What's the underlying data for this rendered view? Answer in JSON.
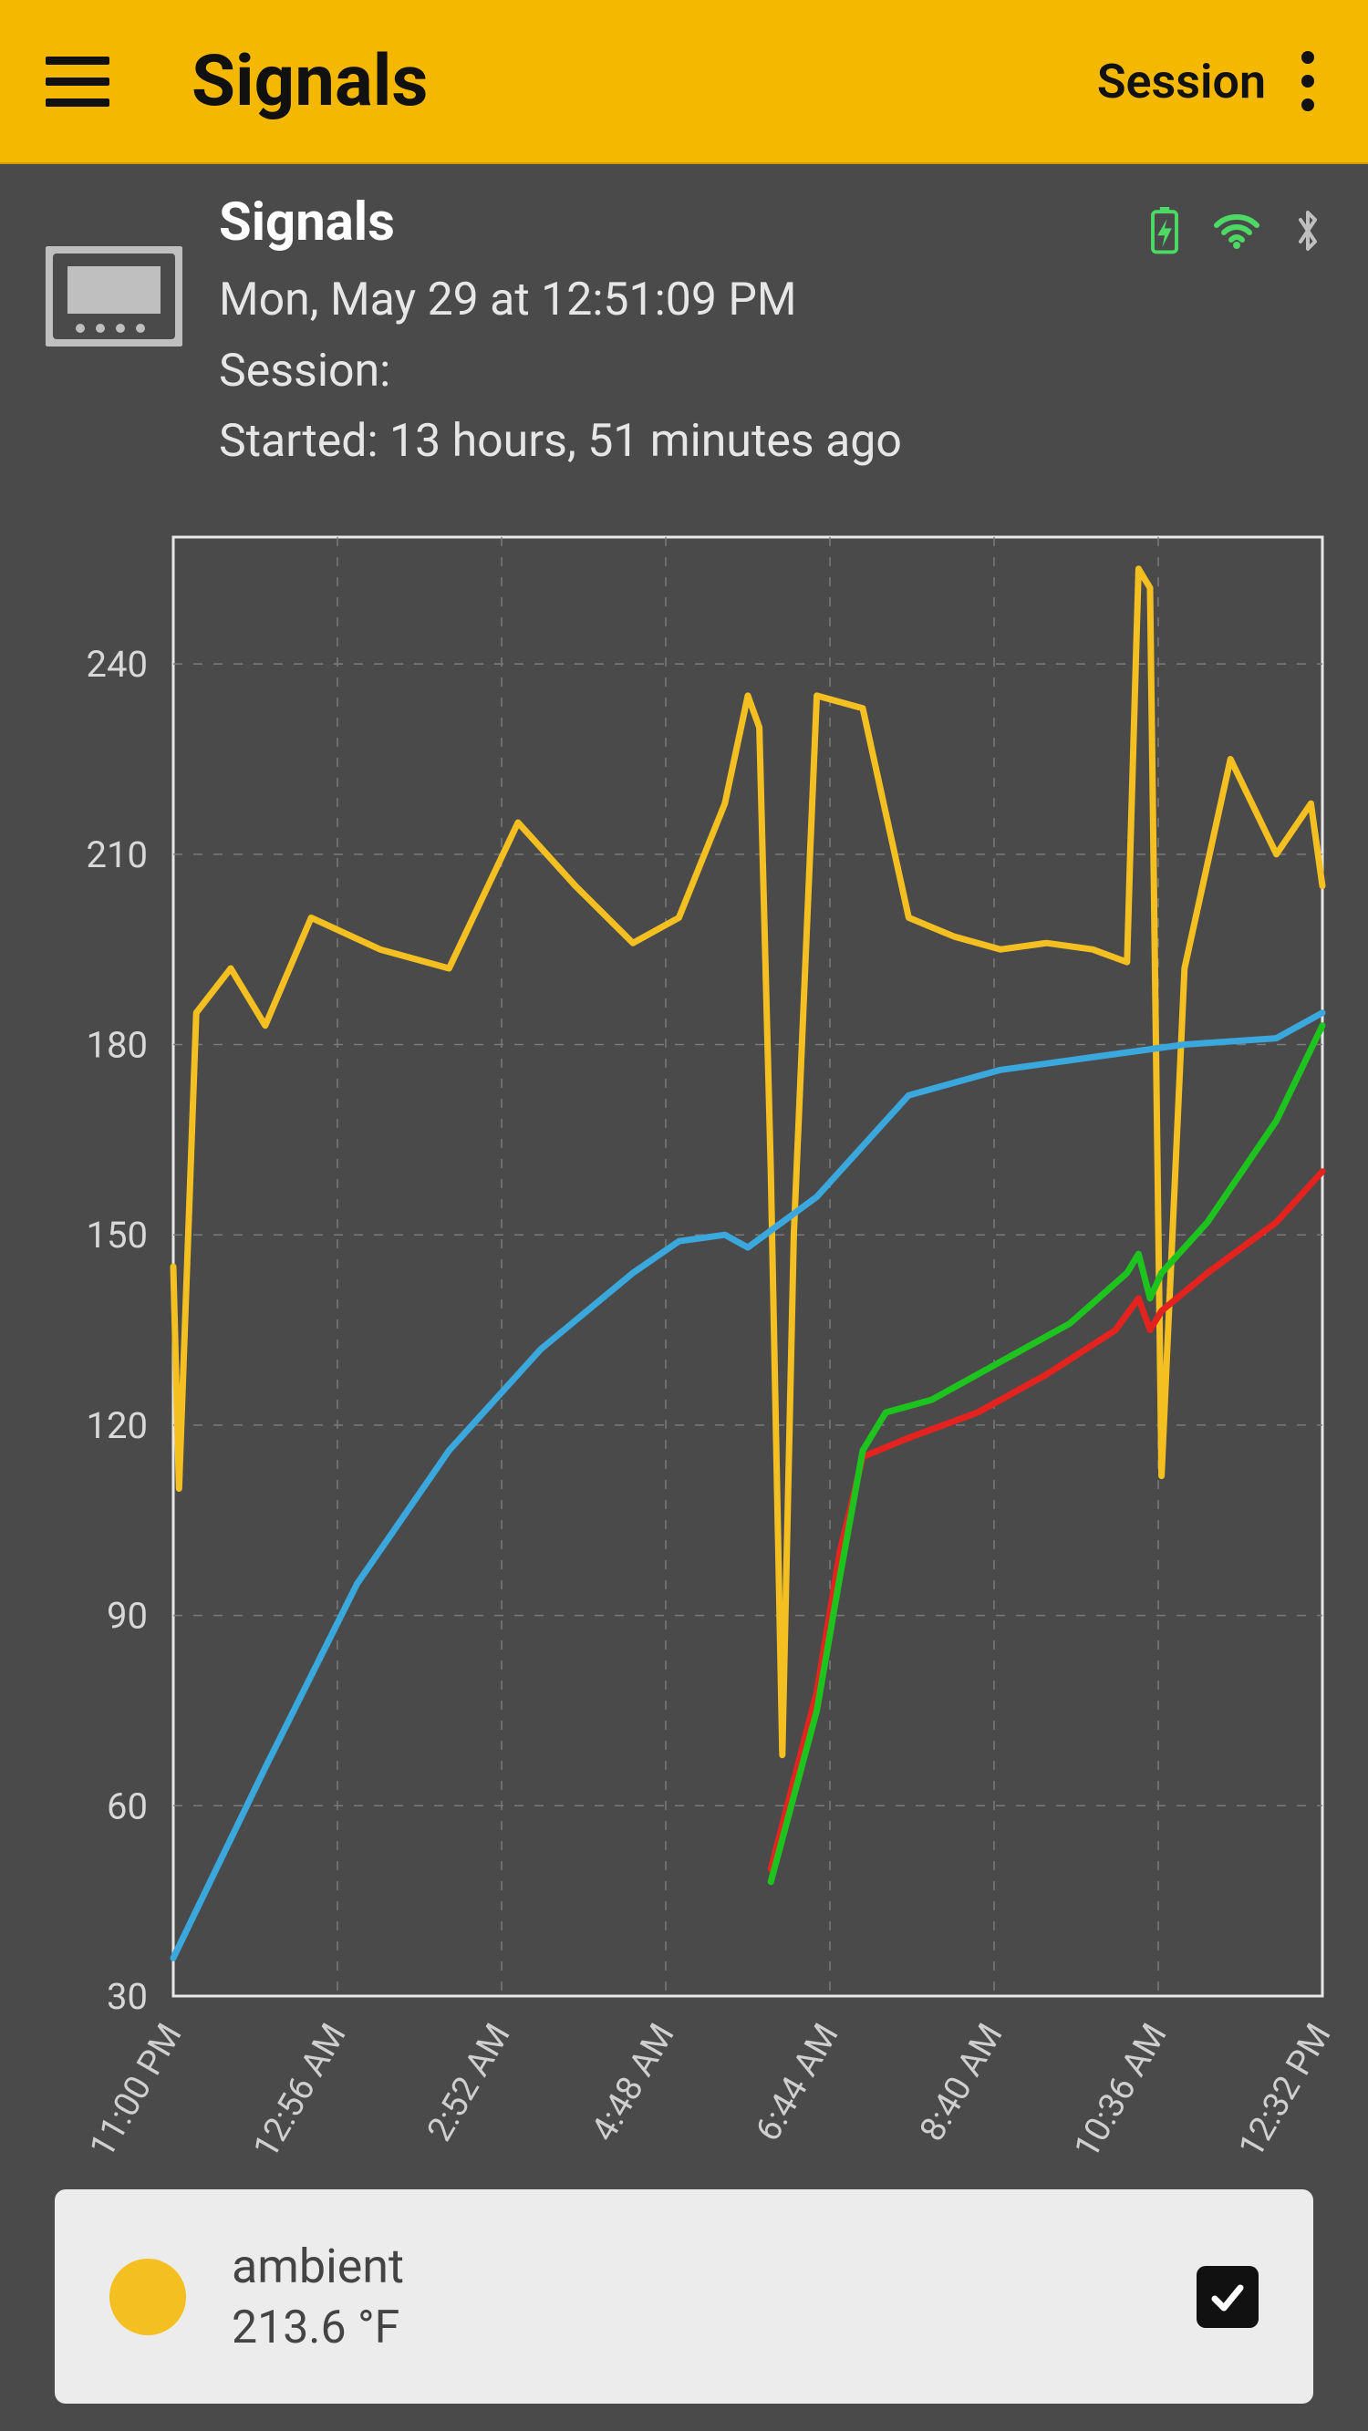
{
  "topbar": {
    "title": "Signals",
    "session_label": "Session",
    "accent_color": "#f4b800"
  },
  "info": {
    "title": "Signals",
    "datetime": "Mon, May 29  at 12:51:09 PM",
    "session_label": "Session:",
    "started": "Started: 13 hours, 51 minutes ago",
    "battery_color": "#4cd964",
    "wifi_color": "#4cd964",
    "bt_color": "#c0c0c0"
  },
  "chart": {
    "type": "line",
    "background_color": "#4a4a4a",
    "plot_border_color": "#e8e8e8",
    "grid_color": "#7a7a7a",
    "ylim": [
      30,
      260
    ],
    "ylabel_color": "#d8d8d8",
    "xlabel_color": "#cfcfcf",
    "yticks": [
      30,
      60,
      90,
      120,
      150,
      180,
      210,
      240
    ],
    "xticks": [
      "11:00 PM",
      "12:56 AM",
      "2:52 AM",
      "4:48 AM",
      "6:44 AM",
      "8:40 AM",
      "10:36 AM",
      "12:32 PM"
    ],
    "line_width": 7,
    "series": {
      "ambient": {
        "color": "#f4c021",
        "x": [
          0,
          0.5,
          2,
          5,
          8,
          12,
          18,
          24,
          30,
          35,
          40,
          44,
          48,
          50,
          51,
          52,
          53,
          54,
          56,
          60,
          64,
          68,
          72,
          76,
          80,
          83,
          84,
          85,
          86,
          88,
          92,
          96,
          99,
          100
        ],
        "y": [
          145,
          110,
          185,
          192,
          183,
          200,
          195,
          192,
          215,
          205,
          196,
          200,
          218,
          235,
          230,
          160,
          68,
          150,
          235,
          233,
          200,
          197,
          195,
          196,
          195,
          193,
          255,
          252,
          112,
          192,
          225,
          210,
          218,
          205
        ]
      },
      "blue": {
        "color": "#3aa7dd",
        "x": [
          0,
          8,
          16,
          24,
          32,
          40,
          44,
          48,
          50,
          56,
          64,
          72,
          80,
          88,
          96,
          100
        ],
        "y": [
          36,
          66,
          95,
          116,
          132,
          144,
          149,
          150,
          148,
          156,
          172,
          176,
          178,
          180,
          181,
          185
        ]
      },
      "green": {
        "color": "#1ec41e",
        "x": [
          52,
          56,
          58,
          60,
          62,
          66,
          72,
          78,
          83,
          84,
          85,
          86,
          90,
          96,
          100
        ],
        "y": [
          48,
          75,
          96,
          116,
          122,
          124,
          130,
          136,
          144,
          147,
          140,
          144,
          152,
          168,
          183
        ]
      },
      "red": {
        "color": "#e4231f",
        "x": [
          52,
          56,
          58,
          60,
          64,
          70,
          76,
          82,
          84,
          85,
          86,
          90,
          96,
          100
        ],
        "y": [
          50,
          78,
          100,
          115,
          118,
          122,
          128,
          135,
          140,
          135,
          138,
          144,
          152,
          160
        ]
      }
    }
  },
  "legend": {
    "swatch_color": "#f4c021",
    "name": "ambient",
    "value": "213.6 °F",
    "checked": true,
    "card_bg": "#ececec"
  }
}
